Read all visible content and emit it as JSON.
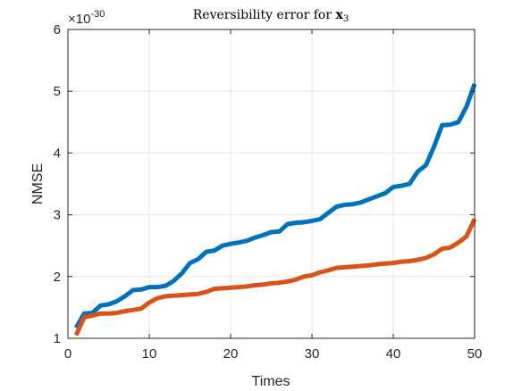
{
  "chart_data": {
    "type": "line",
    "title": "Reversibility error for",
    "title_math_bold": "x",
    "title_math_sub": "3",
    "xlabel": "Times",
    "ylabel": "NMSE",
    "exponent_prefix": "×10",
    "exponent_power": "-30",
    "xlim": [
      0,
      50
    ],
    "ylim": [
      1,
      6
    ],
    "xticks": [
      "0",
      "10",
      "20",
      "30",
      "40",
      "50"
    ],
    "yticks": [
      "1",
      "2",
      "3",
      "4",
      "5",
      "6"
    ],
    "grid": true,
    "series": [
      {
        "color": "#0072BD",
        "x": [
          1,
          2,
          3,
          4,
          5,
          6,
          7,
          8,
          9,
          10,
          11,
          12,
          13,
          14,
          15,
          16,
          17,
          18,
          19,
          20,
          21,
          22,
          23,
          24,
          25,
          26,
          27,
          28,
          29,
          30,
          31,
          32,
          33,
          34,
          35,
          36,
          37,
          38,
          39,
          40,
          41,
          42,
          43,
          44,
          45,
          46,
          47,
          48,
          49,
          50
        ],
        "values": [
          1.17,
          1.4,
          1.41,
          1.53,
          1.55,
          1.6,
          1.68,
          1.78,
          1.79,
          1.83,
          1.83,
          1.85,
          1.93,
          2.05,
          2.22,
          2.28,
          2.4,
          2.42,
          2.5,
          2.53,
          2.55,
          2.58,
          2.63,
          2.67,
          2.72,
          2.73,
          2.85,
          2.87,
          2.88,
          2.9,
          2.93,
          3.03,
          3.13,
          3.16,
          3.17,
          3.2,
          3.25,
          3.3,
          3.35,
          3.45,
          3.47,
          3.5,
          3.7,
          3.8,
          4.1,
          4.45,
          4.46,
          4.5,
          4.75,
          5.12
        ]
      },
      {
        "color": "#D95319",
        "x": [
          1,
          2,
          3,
          4,
          5,
          6,
          7,
          8,
          9,
          10,
          11,
          12,
          13,
          14,
          15,
          16,
          17,
          18,
          19,
          20,
          21,
          22,
          23,
          24,
          25,
          26,
          27,
          28,
          29,
          30,
          31,
          32,
          33,
          34,
          35,
          36,
          37,
          38,
          39,
          40,
          41,
          42,
          43,
          44,
          45,
          46,
          47,
          48,
          49,
          50
        ],
        "values": [
          1.05,
          1.34,
          1.37,
          1.4,
          1.4,
          1.41,
          1.44,
          1.46,
          1.48,
          1.58,
          1.65,
          1.68,
          1.69,
          1.7,
          1.71,
          1.72,
          1.75,
          1.8,
          1.81,
          1.82,
          1.83,
          1.84,
          1.86,
          1.87,
          1.89,
          1.9,
          1.92,
          1.95,
          2.0,
          2.02,
          2.07,
          2.1,
          2.14,
          2.15,
          2.16,
          2.17,
          2.18,
          2.2,
          2.21,
          2.22,
          2.24,
          2.25,
          2.27,
          2.3,
          2.36,
          2.45,
          2.47,
          2.55,
          2.65,
          2.93
        ]
      }
    ]
  }
}
